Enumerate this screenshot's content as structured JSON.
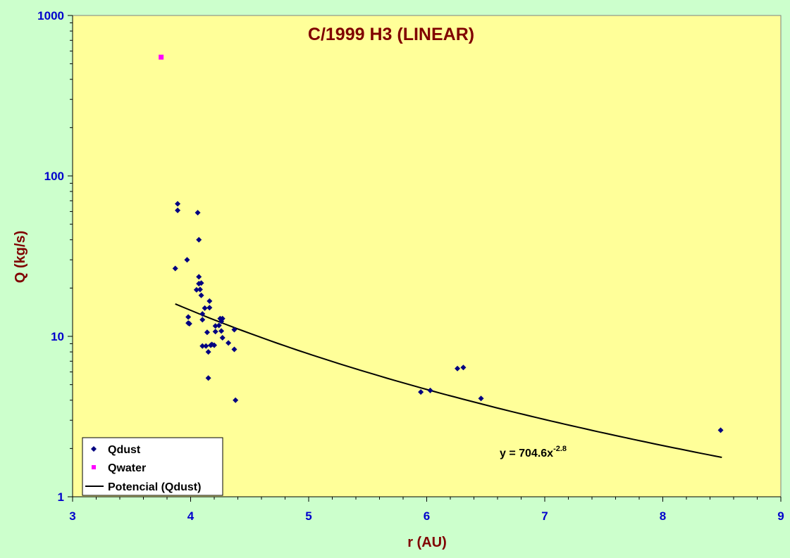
{
  "chart_data": {
    "type": "scatter",
    "title": "C/1999 H3 (LINEAR)",
    "xlabel": "r (AU)",
    "ylabel": "Q (kg/s)",
    "xlim": [
      3,
      9
    ],
    "ylim": [
      1,
      1000
    ],
    "yscale": "log",
    "x_ticks": [
      "3",
      "4",
      "5",
      "6",
      "7",
      "8",
      "9"
    ],
    "y_ticks": [
      "1",
      "10",
      "100",
      "1000"
    ],
    "grid": false,
    "legend_position": "bottom-left",
    "colors": {
      "plot_background": "#ffff99",
      "page_background": "#ccffcc",
      "tick_labels": "#0000cc",
      "title_and_axis_labels": "#800000",
      "qdust": "#000080",
      "qwater": "#ff00ff",
      "fit": "#000000"
    },
    "series": [
      {
        "name": "Qdust",
        "marker": "diamond",
        "points": [
          [
            3.87,
            26.5
          ],
          [
            3.89,
            67
          ],
          [
            3.89,
            61
          ],
          [
            3.97,
            30
          ],
          [
            3.98,
            13.2
          ],
          [
            3.98,
            12.1
          ],
          [
            3.99,
            12.0
          ],
          [
            4.05,
            19.5
          ],
          [
            4.06,
            59
          ],
          [
            4.07,
            40
          ],
          [
            4.07,
            23.5
          ],
          [
            4.07,
            21.3
          ],
          [
            4.08,
            19.6
          ],
          [
            4.09,
            21.5
          ],
          [
            4.09,
            18.0
          ],
          [
            4.1,
            13.8
          ],
          [
            4.1,
            12.7
          ],
          [
            4.1,
            8.7
          ],
          [
            4.12,
            15.0
          ],
          [
            4.13,
            8.7
          ],
          [
            4.14,
            10.6
          ],
          [
            4.15,
            8.0
          ],
          [
            4.15,
            5.5
          ],
          [
            4.16,
            16.6
          ],
          [
            4.16,
            15.1
          ],
          [
            4.17,
            8.8
          ],
          [
            4.18,
            8.9
          ],
          [
            4.2,
            8.8
          ],
          [
            4.21,
            11.6
          ],
          [
            4.21,
            10.7
          ],
          [
            4.24,
            11.7
          ],
          [
            4.25,
            12.9
          ],
          [
            4.26,
            12.4
          ],
          [
            4.26,
            10.8
          ],
          [
            4.27,
            12.9
          ],
          [
            4.27,
            9.8
          ],
          [
            4.32,
            9.1
          ],
          [
            4.37,
            11.0
          ],
          [
            4.37,
            8.3
          ],
          [
            4.38,
            4.0
          ],
          [
            5.95,
            4.5
          ],
          [
            6.03,
            4.6
          ],
          [
            6.26,
            6.3
          ],
          [
            6.31,
            6.4
          ],
          [
            6.46,
            4.1
          ],
          [
            8.49,
            2.6
          ]
        ]
      },
      {
        "name": "Qwater",
        "marker": "square",
        "points": [
          [
            3.75,
            550
          ]
        ]
      }
    ],
    "trendline": {
      "name": "Potencial (Qdust)",
      "type": "power",
      "coefficient": 704.6,
      "exponent": -2.8,
      "x_range": [
        3.87,
        8.5
      ],
      "equation_base": "y = 704.6x",
      "equation_exponent": "-2.8"
    }
  }
}
